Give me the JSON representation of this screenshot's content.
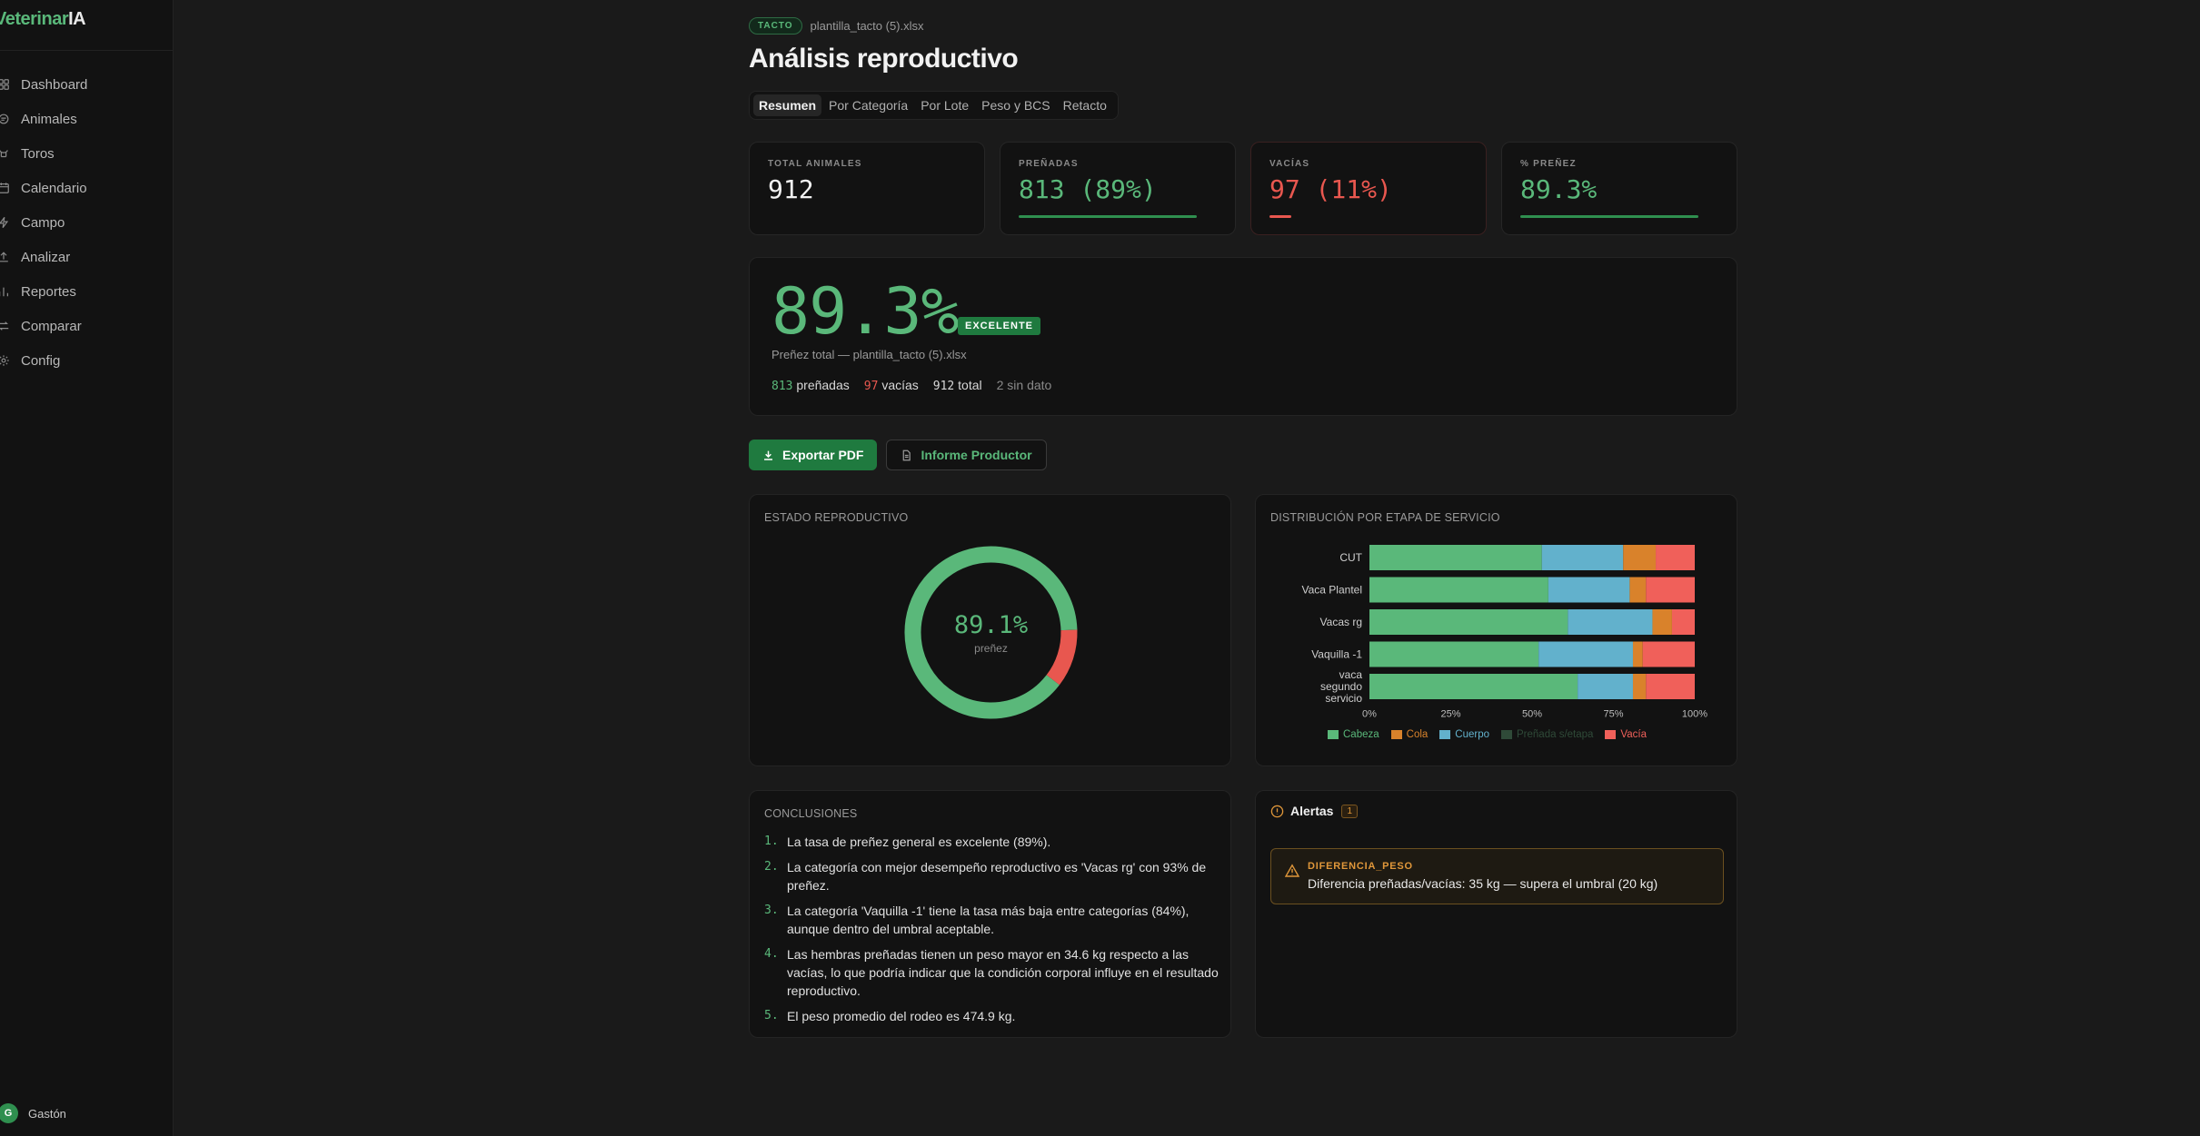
{
  "app": {
    "brand_a": "Veterinar",
    "brand_b": "IA"
  },
  "sidebar": {
    "items": [
      {
        "label": "Dashboard",
        "icon": "grid-icon"
      },
      {
        "label": "Animales",
        "icon": "animal-icon"
      },
      {
        "label": "Toros",
        "icon": "bull-icon"
      },
      {
        "label": "Calendario",
        "icon": "calendar-icon"
      },
      {
        "label": "Campo",
        "icon": "field-icon"
      },
      {
        "label": "Analizar",
        "icon": "upload-icon"
      },
      {
        "label": "Reportes",
        "icon": "bar-chart-icon"
      },
      {
        "label": "Comparar",
        "icon": "compare-icon"
      },
      {
        "label": "Config",
        "icon": "gear-icon"
      }
    ],
    "user": {
      "initial": "G",
      "name": "Gastón"
    }
  },
  "header": {
    "tag": "TACTO",
    "file": "plantilla_tacto (5).xlsx",
    "title": "Análisis reproductivo"
  },
  "tabs": [
    {
      "label": "Resumen",
      "active": true
    },
    {
      "label": "Por Categoría",
      "active": false
    },
    {
      "label": "Por Lote",
      "active": false
    },
    {
      "label": "Peso y BCS",
      "active": false
    },
    {
      "label": "Retacto",
      "active": false
    }
  ],
  "stats": [
    {
      "label": "TOTAL ANIMALES",
      "value": "912",
      "tone": "neutral",
      "fill": null
    },
    {
      "label": "PREÑADAS",
      "value": "813 (89%)",
      "tone": "green",
      "fill": 0.89
    },
    {
      "label": "VACÍAS",
      "value": "97 (11%)",
      "tone": "red",
      "fill": 0.11
    },
    {
      "label": "% PREÑEZ",
      "value": "89.3%",
      "tone": "green",
      "fill": 0.893
    }
  ],
  "hero": {
    "pct": "89.3%",
    "badge": "EXCELENTE",
    "sub": "Preñez total — plantilla_tacto (5).xlsx",
    "pregnant_n": "813",
    "pregnant_lbl": "preñadas",
    "empty_n": "97",
    "empty_lbl": "vacías",
    "total_n": "912",
    "total_lbl": "total",
    "nodata": "2 sin dato"
  },
  "actions": {
    "export_pdf": "Exportar PDF",
    "report": "Informe Productor"
  },
  "donut": {
    "title": "ESTADO REPRODUCTIVO",
    "center_pct": "89.1%",
    "center_lbl": "preñez",
    "pregnant_fraction": 0.891,
    "colors": {
      "pregnant": "#5ab87a",
      "empty": "#e8574f"
    }
  },
  "chart_data": {
    "type": "bar",
    "orientation": "horizontal-stacked-100",
    "title": "DISTRIBUCIÓN POR ETAPA DE SERVICIO",
    "categories": [
      "CUT",
      "Vaca Plantel",
      "Vacas rg",
      "Vaquilla -1",
      "vaca segundo servicio"
    ],
    "series": [
      {
        "name": "Cabeza",
        "color": "#5ab87a",
        "values": [
          53,
          55,
          61,
          52,
          64
        ]
      },
      {
        "name": "Cola",
        "color": "#d9822b",
        "values": [
          10,
          5,
          6,
          3,
          4
        ]
      },
      {
        "name": "Cuerpo",
        "color": "#62b1cc",
        "values": [
          25,
          25,
          26,
          29,
          17
        ]
      },
      {
        "name": "Preñada s/etapa",
        "color": "#2f4a38",
        "values": [
          0,
          0,
          0,
          0,
          0
        ]
      },
      {
        "name": "Vacía",
        "color": "#f0605a",
        "values": [
          12,
          15,
          7,
          16,
          15
        ]
      }
    ],
    "stack_order": [
      "Cabeza",
      "Cuerpo",
      "Cola",
      "Vacía"
    ],
    "xlim": [
      0,
      100
    ],
    "xticks": [
      "0%",
      "25%",
      "50%",
      "75%",
      "100%"
    ],
    "legend": "bottom"
  },
  "conclusions": {
    "title": "CONCLUSIONES",
    "items": [
      "La tasa de preñez general es excelente (89%).",
      "La categoría con mejor desempeño reproductivo es 'Vacas rg' con 93% de preñez.",
      "La categoría 'Vaquilla -1' tiene la tasa más baja entre categorías (84%), aunque dentro del umbral aceptable.",
      "Las hembras preñadas tienen un peso mayor en 34.6 kg respecto a las vacías, lo que podría indicar que la condición corporal influye en el resultado reproductivo.",
      "El peso promedio del rodeo es 474.9 kg."
    ]
  },
  "alerts": {
    "title": "Alertas",
    "count": "1",
    "items": [
      {
        "code": "DIFERENCIA_PESO",
        "message": "Diferencia preñadas/vacías: 35 kg — supera el umbral (20 kg)"
      }
    ]
  }
}
